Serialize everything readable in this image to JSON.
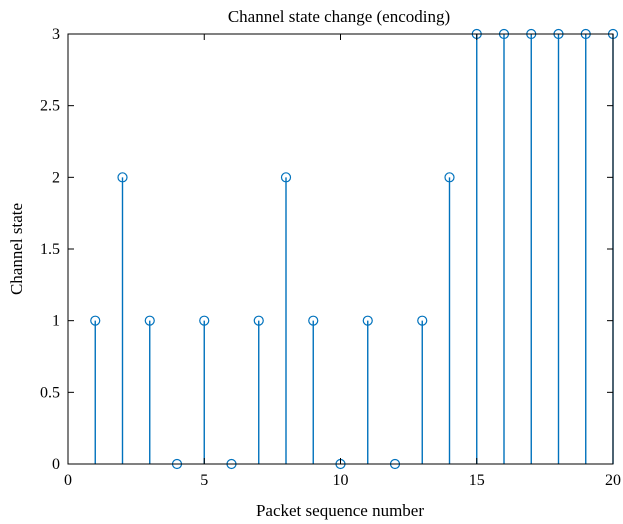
{
  "chart_data": {
    "type": "stem",
    "title": "Channel state change (encoding)",
    "xlabel": "Packet sequence number",
    "ylabel": "Channel state",
    "xlim": [
      0,
      20
    ],
    "ylim": [
      0,
      3
    ],
    "xticks": [
      0,
      5,
      10,
      15,
      20
    ],
    "yticks": [
      0,
      0.5,
      1,
      1.5,
      2,
      2.5,
      3
    ],
    "xtick_labels": [
      "0",
      "5",
      "10",
      "15",
      "20"
    ],
    "ytick_labels": [
      "0",
      "0.5",
      "1",
      "1.5",
      "2",
      "2.5",
      "3"
    ],
    "grid": false,
    "series": [
      {
        "x": [
          1,
          2,
          3,
          4,
          5,
          6,
          7,
          8,
          9,
          10,
          11,
          12,
          13,
          14,
          15,
          16,
          17,
          18,
          19,
          20
        ],
        "y": [
          1,
          2,
          1,
          0,
          1,
          0,
          1,
          2,
          1,
          0,
          1,
          0,
          1,
          2,
          3,
          3,
          3,
          3,
          3,
          3
        ],
        "color": "#0072BD",
        "marker": "circle"
      }
    ]
  }
}
